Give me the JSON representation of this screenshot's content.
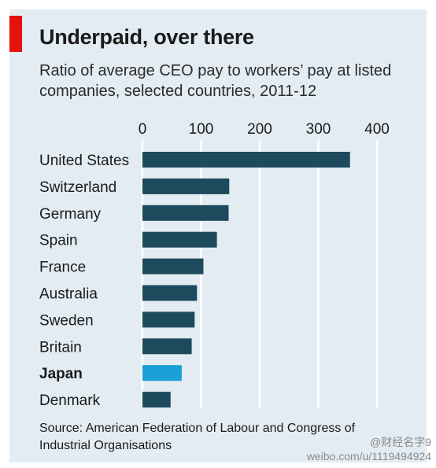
{
  "header": {
    "title": "Underpaid, over there",
    "subtitle": "Ratio of average CEO pay to workers’ pay at listed companies, selected countries, 2011-12"
  },
  "source": "Source: American Federation of Labour and Congress of Industrial Organisations",
  "watermark": {
    "handle": "@财经名字9",
    "url": "weibo.com/u/1119494924"
  },
  "colors": {
    "bar": "#1d4a5c",
    "highlight": "#1a9fd6",
    "grid": "#ffffff",
    "accent": "#e3120b",
    "panel": "#e3ecf2"
  },
  "chart_data": {
    "type": "bar",
    "orientation": "horizontal",
    "title": "Underpaid, over there",
    "subtitle": "Ratio of average CEO pay to workers’ pay at listed companies, selected countries, 2011-12",
    "categories": [
      "United States",
      "Switzerland",
      "Germany",
      "Spain",
      "France",
      "Australia",
      "Sweden",
      "Britain",
      "Japan",
      "Denmark"
    ],
    "values": [
      354,
      148,
      147,
      127,
      104,
      93,
      89,
      84,
      67,
      48
    ],
    "highlight": "Japan",
    "xlim": [
      0,
      400
    ],
    "xticks": [
      0,
      100,
      200,
      300,
      400
    ],
    "tick_position": "top",
    "grid": true
  }
}
